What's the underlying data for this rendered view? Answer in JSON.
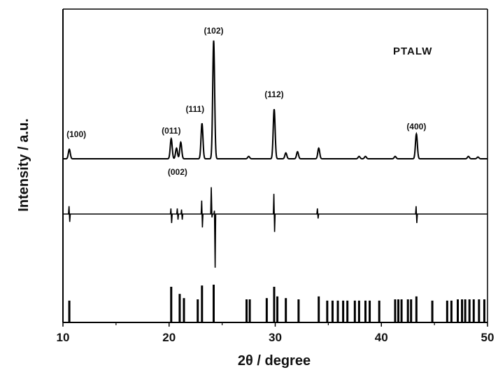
{
  "chart_data": {
    "type": "line",
    "xlabel": "2θ / degree",
    "ylabel": "Intensity / a.u.",
    "xlim": [
      10,
      50
    ],
    "x_ticks": [
      "10",
      "20",
      "30",
      "40",
      "50"
    ],
    "y_ticks_labeled": false,
    "sample_label": "PTALW",
    "annotations": [
      {
        "label": "(100)",
        "x": 10.6
      },
      {
        "label": "(011)",
        "x": 20.2
      },
      {
        "label": "(002)",
        "x": 20.8
      },
      {
        "label": "(111)",
        "x": 23.1
      },
      {
        "label": "(102)",
        "x": 24.2
      },
      {
        "label": "(112)",
        "x": 29.9
      },
      {
        "label": "(400)",
        "x": 43.3
      }
    ],
    "series": [
      {
        "role": "observed",
        "baseline": 0,
        "peaks": [
          {
            "x": 10.6,
            "y": 0.08
          },
          {
            "x": 20.2,
            "y": 0.17
          },
          {
            "x": 20.7,
            "y": 0.09
          },
          {
            "x": 21.1,
            "y": 0.14
          },
          {
            "x": 23.1,
            "y": 0.3
          },
          {
            "x": 24.2,
            "y": 1.0
          },
          {
            "x": 27.5,
            "y": 0.02
          },
          {
            "x": 29.9,
            "y": 0.42
          },
          {
            "x": 31.0,
            "y": 0.05
          },
          {
            "x": 32.1,
            "y": 0.06
          },
          {
            "x": 34.1,
            "y": 0.09
          },
          {
            "x": 37.9,
            "y": 0.02
          },
          {
            "x": 38.5,
            "y": 0.02
          },
          {
            "x": 41.3,
            "y": 0.02
          },
          {
            "x": 43.3,
            "y": 0.21
          },
          {
            "x": 48.2,
            "y": 0.02
          },
          {
            "x": 49.1,
            "y": 0.015
          }
        ]
      },
      {
        "role": "difference",
        "baseline": 0,
        "features": [
          {
            "x": 10.6,
            "up": 0.07,
            "down": 0.07
          },
          {
            "x": 20.2,
            "up": 0.05,
            "down": 0.08
          },
          {
            "x": 20.8,
            "up": 0.05,
            "down": 0.05
          },
          {
            "x": 21.2,
            "up": 0.04,
            "down": 0.05
          },
          {
            "x": 23.1,
            "up": 0.12,
            "down": 0.12
          },
          {
            "x": 24.0,
            "up": 0.24,
            "down": 0.03
          },
          {
            "x": 24.3,
            "up": 0.03,
            "down": 0.48
          },
          {
            "x": 29.9,
            "up": 0.18,
            "down": 0.16
          },
          {
            "x": 34.0,
            "up": 0.05,
            "down": 0.04
          },
          {
            "x": 43.3,
            "up": 0.07,
            "down": 0.08
          }
        ]
      },
      {
        "role": "reflections",
        "bars": [
          {
            "x": 10.6,
            "h": 0.52
          },
          {
            "x": 20.2,
            "h": 0.85
          },
          {
            "x": 21.0,
            "h": 0.68
          },
          {
            "x": 21.4,
            "h": 0.58
          },
          {
            "x": 22.7,
            "h": 0.55
          },
          {
            "x": 23.1,
            "h": 0.88
          },
          {
            "x": 24.2,
            "h": 0.9
          },
          {
            "x": 27.3,
            "h": 0.55
          },
          {
            "x": 27.6,
            "h": 0.55
          },
          {
            "x": 29.2,
            "h": 0.58
          },
          {
            "x": 29.9,
            "h": 0.85
          },
          {
            "x": 30.2,
            "h": 0.62
          },
          {
            "x": 31.0,
            "h": 0.58
          },
          {
            "x": 32.2,
            "h": 0.55
          },
          {
            "x": 34.1,
            "h": 0.62
          },
          {
            "x": 34.9,
            "h": 0.52
          },
          {
            "x": 35.4,
            "h": 0.52
          },
          {
            "x": 35.9,
            "h": 0.52
          },
          {
            "x": 36.4,
            "h": 0.52
          },
          {
            "x": 36.8,
            "h": 0.52
          },
          {
            "x": 37.5,
            "h": 0.52
          },
          {
            "x": 37.9,
            "h": 0.52
          },
          {
            "x": 38.5,
            "h": 0.52
          },
          {
            "x": 38.9,
            "h": 0.52
          },
          {
            "x": 39.8,
            "h": 0.52
          },
          {
            "x": 41.3,
            "h": 0.55
          },
          {
            "x": 41.6,
            "h": 0.55
          },
          {
            "x": 41.9,
            "h": 0.55
          },
          {
            "x": 42.5,
            "h": 0.55
          },
          {
            "x": 42.8,
            "h": 0.55
          },
          {
            "x": 43.3,
            "h": 0.62
          },
          {
            "x": 44.8,
            "h": 0.52
          },
          {
            "x": 46.2,
            "h": 0.52
          },
          {
            "x": 46.6,
            "h": 0.52
          },
          {
            "x": 47.2,
            "h": 0.55
          },
          {
            "x": 47.6,
            "h": 0.55
          },
          {
            "x": 47.9,
            "h": 0.55
          },
          {
            "x": 48.3,
            "h": 0.55
          },
          {
            "x": 48.7,
            "h": 0.55
          },
          {
            "x": 49.2,
            "h": 0.55
          },
          {
            "x": 49.7,
            "h": 0.55
          }
        ]
      }
    ]
  }
}
